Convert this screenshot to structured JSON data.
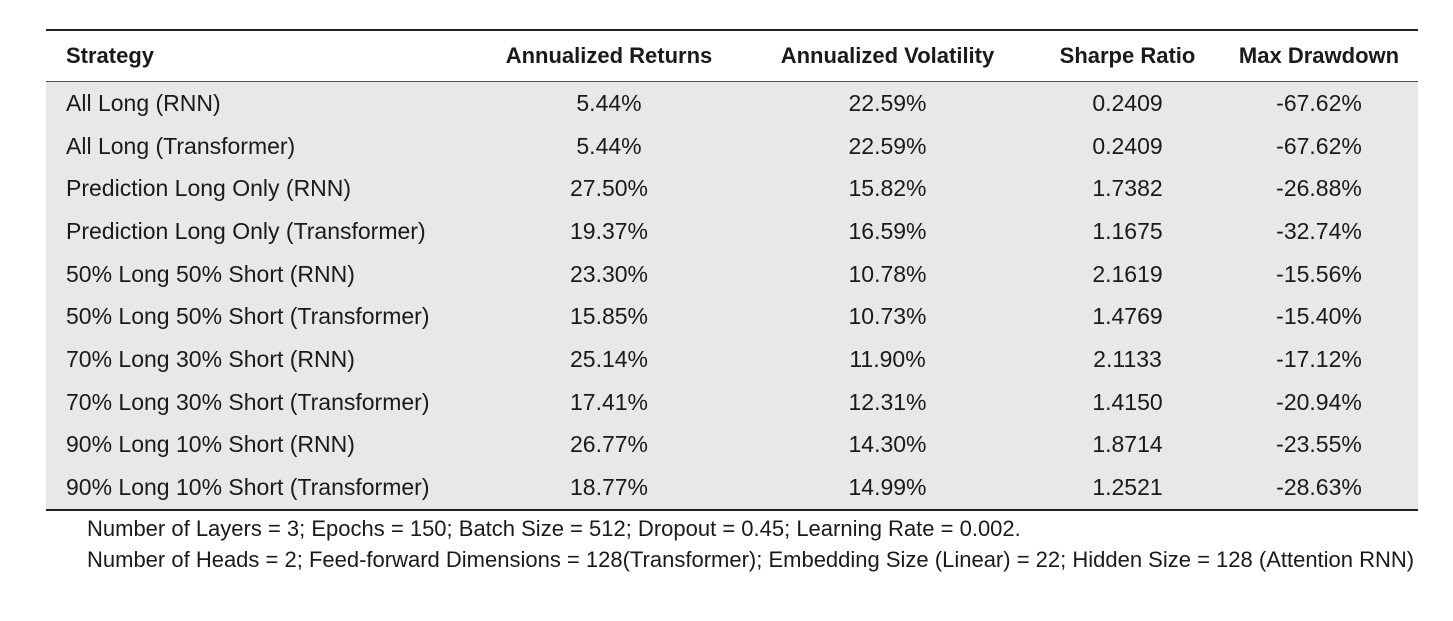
{
  "table": {
    "headers": [
      "Strategy",
      "Annualized Returns",
      "Annualized Volatility",
      "Sharpe Ratio",
      "Max Drawdown"
    ],
    "rows": [
      [
        "All Long (RNN)",
        "5.44%",
        "22.59%",
        "0.2409",
        "-67.62%"
      ],
      [
        "All Long (Transformer)",
        "5.44%",
        "22.59%",
        "0.2409",
        "-67.62%"
      ],
      [
        "Prediction Long Only (RNN)",
        "27.50%",
        "15.82%",
        "1.7382",
        "-26.88%"
      ],
      [
        "Prediction Long Only (Transformer)",
        "19.37%",
        "16.59%",
        "1.1675",
        "-32.74%"
      ],
      [
        "50% Long 50% Short (RNN)",
        "23.30%",
        "10.78%",
        "2.1619",
        "-15.56%"
      ],
      [
        "50% Long 50% Short (Transformer)",
        "15.85%",
        "10.73%",
        "1.4769",
        "-15.40%"
      ],
      [
        "70% Long 30% Short (RNN)",
        "25.14%",
        "11.90%",
        "2.1133",
        "-17.12%"
      ],
      [
        "70% Long 30% Short (Transformer)",
        "17.41%",
        "12.31%",
        "1.4150",
        "-20.94%"
      ],
      [
        "90% Long 10% Short (RNN)",
        "26.77%",
        "14.30%",
        "1.8714",
        "-23.55%"
      ],
      [
        "90% Long 10% Short (Transformer)",
        "18.77%",
        "14.99%",
        "1.2521",
        "-28.63%"
      ]
    ]
  },
  "caption": {
    "line1": "Number of Layers = 3; Epochs = 150; Batch Size = 512; Dropout = 0.45; Learning Rate = 0.002.",
    "line2": "Number of Heads = 2; Feed-forward Dimensions = 128(Transformer); Embedding Size (Linear) = 22; Hidden Size = 128 (Attention RNN)"
  },
  "colors": {
    "row_background": "#e8e8e8",
    "rule": "#222222"
  }
}
